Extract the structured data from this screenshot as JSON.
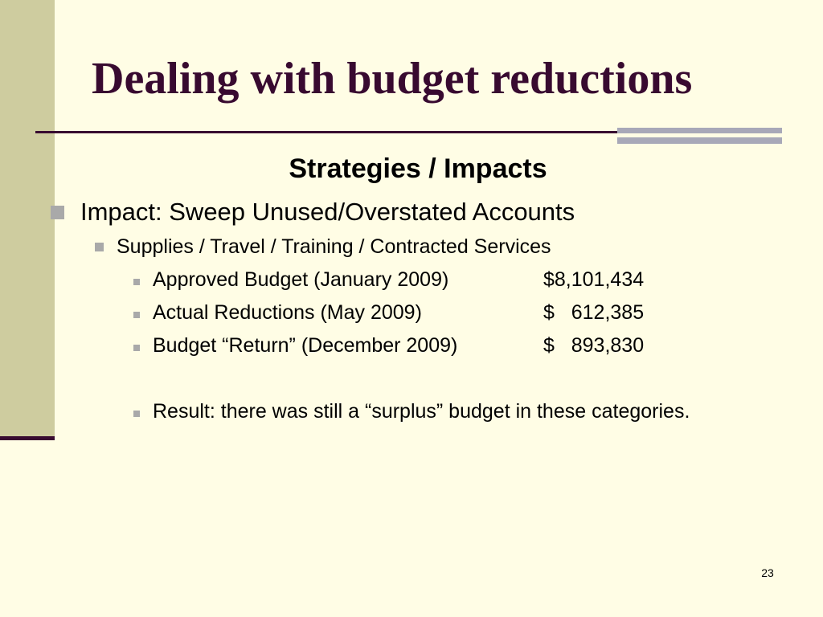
{
  "slide": {
    "title": "Dealing with budget reductions",
    "subheading": "Strategies / Impacts",
    "level1": "Impact: Sweep Unused/Overstated Accounts",
    "level2": "Supplies / Travel / Training / Contracted Services",
    "items": [
      {
        "label": "Approved Budget (January 2009)",
        "amount": "$8,101,434"
      },
      {
        "label": "Actual Reductions (May 2009)",
        "amount": "$   612,385"
      },
      {
        "label": "Budget “Return” (December 2009)",
        "amount": "$   893,830"
      }
    ],
    "result": "Result: there was still a “surplus” budget in these categories.",
    "page_number": "23"
  },
  "colors": {
    "background": "#FFFDE5",
    "title": "#380A30",
    "left_band": "#CECC9F",
    "bullet": "#A9A9A9",
    "deco_bar": "#A8A8B8"
  }
}
